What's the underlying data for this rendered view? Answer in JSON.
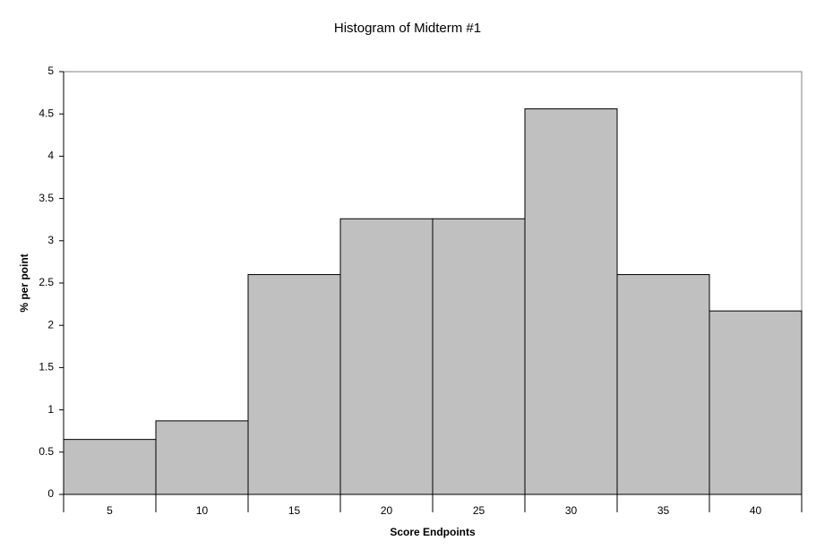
{
  "chart_data": {
    "type": "bar",
    "title": "Histogram of Midterm #1",
    "x_label": "Score Endpoints",
    "y_label": "% per point",
    "categories": [
      "5",
      "10",
      "15",
      "20",
      "25",
      "30",
      "35",
      "40"
    ],
    "values": [
      0.65,
      0.87,
      2.6,
      3.26,
      3.26,
      4.56,
      2.6,
      2.17
    ],
    "color": "#c0c0c0",
    "ylim": [
      0,
      5
    ],
    "yticks": [
      0,
      0.5,
      1,
      1.5,
      2,
      2.5,
      3,
      3.5,
      4,
      4.5,
      5
    ],
    "grid": false
  }
}
